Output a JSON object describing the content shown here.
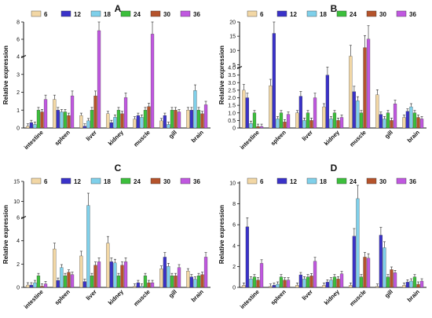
{
  "figure": {
    "background": "#ffffff"
  },
  "chart_data": [
    {
      "panel": "A",
      "type": "bar",
      "legend": [
        "6",
        "12",
        "18",
        "24",
        "30",
        "36"
      ],
      "colors": [
        "#f2d7a5",
        "#3a32c9",
        "#7fd0ea",
        "#3cbf3c",
        "#b5532b",
        "#c058e0"
      ],
      "ylabel": "Relative expression",
      "categories": [
        "intestine",
        "spleen",
        "liver",
        "kidney",
        "muscle",
        "gill",
        "brain"
      ],
      "yticks": [
        "0",
        "1",
        "2",
        "3",
        "4",
        "6",
        "8"
      ],
      "series": [
        {
          "name": "6",
          "values": [
            0.1,
            1.6,
            0.7,
            0.8,
            0.5,
            0.4,
            1.0
          ]
        },
        {
          "name": "12",
          "values": [
            0.3,
            1.0,
            0.1,
            0.3,
            0.7,
            0.7,
            1.0
          ]
        },
        {
          "name": "18",
          "values": [
            0.2,
            0.9,
            0.4,
            0.6,
            0.6,
            0.2,
            2.1
          ]
        },
        {
          "name": "24",
          "values": [
            1.0,
            0.9,
            1.0,
            1.0,
            1.0,
            1.0,
            1.0
          ]
        },
        {
          "name": "30",
          "values": [
            0.9,
            0.7,
            1.8,
            0.8,
            1.2,
            1.0,
            0.8
          ]
        },
        {
          "name": "36",
          "values": [
            1.6,
            1.8,
            7.0,
            1.7,
            6.6,
            0.9,
            1.3
          ]
        }
      ]
    },
    {
      "panel": "B",
      "type": "bar",
      "legend": [
        "6",
        "12",
        "18",
        "24",
        "30",
        "36"
      ],
      "colors": [
        "#f2d7a5",
        "#3a32c9",
        "#7fd0ea",
        "#3cbf3c",
        "#b5532b",
        "#c058e0"
      ],
      "ylabel": "Relative expression",
      "categories": [
        "intestine",
        "spleen",
        "liver",
        "kidney",
        "muscle",
        "gill",
        "brain"
      ],
      "yticks": [
        "0",
        "0.5",
        "1.0",
        "1.5",
        "2.0",
        "2.5",
        "3.0",
        "3.5",
        "4.0",
        "5",
        "10",
        "15",
        "20"
      ],
      "series": [
        {
          "name": "6",
          "values": [
            2.5,
            2.8,
            1.0,
            1.4,
            8.0,
            2.2,
            0.7
          ]
        },
        {
          "name": "12",
          "values": [
            2.0,
            16.0,
            2.1,
            3.5,
            2.4,
            0.9,
            1.1
          ]
        },
        {
          "name": "18",
          "values": [
            0.3,
            0.6,
            0.5,
            0.6,
            1.8,
            0.6,
            1.4
          ]
        },
        {
          "name": "24",
          "values": [
            1.0,
            1.0,
            1.0,
            1.0,
            1.0,
            1.0,
            1.0
          ]
        },
        {
          "name": "30",
          "values": [
            0.1,
            0.4,
            0.5,
            0.5,
            11.0,
            0.5,
            0.7
          ]
        },
        {
          "name": "36",
          "values": [
            0.1,
            0.9,
            2.0,
            0.7,
            14.0,
            1.6,
            0.6
          ]
        }
      ]
    },
    {
      "panel": "C",
      "type": "bar",
      "legend": [
        "6",
        "12",
        "18",
        "24",
        "30",
        "36"
      ],
      "colors": [
        "#f2d7a5",
        "#3a32c9",
        "#7fd0ea",
        "#3cbf3c",
        "#b5532b",
        "#c058e0"
      ],
      "ylabel": "Relative expression",
      "categories": [
        "intestine",
        "spleen",
        "liver",
        "kidney",
        "muscle",
        "gill",
        "brain"
      ],
      "yticks": [
        "0",
        "2",
        "4",
        "6",
        "10",
        "15"
      ],
      "series": [
        {
          "name": "6",
          "values": [
            0.2,
            3.3,
            2.7,
            3.8,
            0.1,
            1.6,
            1.4
          ]
        },
        {
          "name": "12",
          "values": [
            0.2,
            0.6,
            0.5,
            2.2,
            0.4,
            2.6,
            0.9
          ]
        },
        {
          "name": "18",
          "values": [
            0.4,
            1.7,
            9.0,
            2.1,
            0.1,
            1.8,
            0.7
          ]
        },
        {
          "name": "24",
          "values": [
            1.0,
            1.0,
            1.0,
            1.0,
            1.0,
            1.0,
            1.0
          ]
        },
        {
          "name": "30",
          "values": [
            0.1,
            1.3,
            1.9,
            1.9,
            0.4,
            1.0,
            1.1
          ]
        },
        {
          "name": "36",
          "values": [
            0.3,
            1.1,
            2.2,
            2.2,
            0.4,
            1.7,
            2.6
          ]
        }
      ]
    },
    {
      "panel": "D",
      "type": "bar",
      "legend": [
        "6",
        "12",
        "18",
        "24",
        "30",
        "36"
      ],
      "colors": [
        "#f2d7a5",
        "#3a32c9",
        "#7fd0ea",
        "#3cbf3c",
        "#b5532b",
        "#c058e0"
      ],
      "ylabel": "Relative expression",
      "categories": [
        "intestine",
        "spleen",
        "liver",
        "kidney",
        "muscle",
        "gill",
        "brain"
      ],
      "yticks": [
        "0",
        "2",
        "4",
        "6",
        "8",
        "10"
      ],
      "series": [
        {
          "name": "6",
          "values": [
            0.2,
            0.1,
            0.2,
            0.2,
            0.2,
            0.1,
            0.2
          ]
        },
        {
          "name": "12",
          "values": [
            5.8,
            0.2,
            1.2,
            0.5,
            4.9,
            5.0,
            0.5
          ]
        },
        {
          "name": "18",
          "values": [
            0.8,
            0.3,
            0.8,
            0.7,
            8.5,
            3.8,
            0.6
          ]
        },
        {
          "name": "24",
          "values": [
            1.0,
            1.0,
            1.0,
            1.0,
            1.0,
            1.0,
            1.0
          ]
        },
        {
          "name": "30",
          "values": [
            0.7,
            0.7,
            1.1,
            0.8,
            2.9,
            1.7,
            0.3
          ]
        },
        {
          "name": "36",
          "values": [
            2.3,
            0.7,
            2.5,
            1.3,
            2.8,
            1.4,
            0.6
          ]
        }
      ]
    }
  ]
}
